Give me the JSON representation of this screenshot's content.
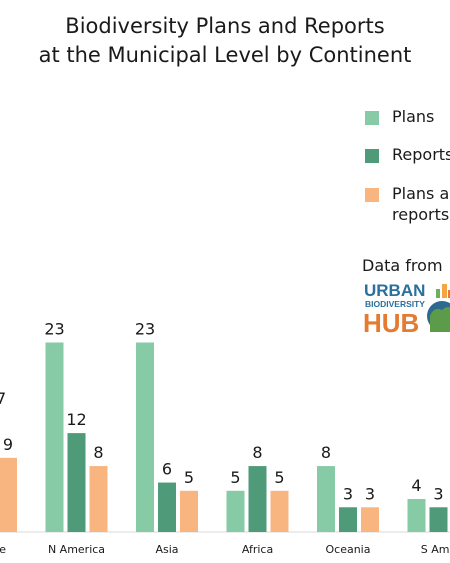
{
  "chart_data": {
    "type": "bar",
    "title_lines": [
      "Biodiversity Plans and Reports",
      "at the Municipal Level by Continent"
    ],
    "categories": [
      "pe",
      "N America",
      "Asia",
      "Africa",
      "Oceania",
      "S Ame"
    ],
    "series": [
      {
        "name": "Plans",
        "color": "#86cba5",
        "values": [
          null,
          23,
          23,
          5,
          8,
          4
        ]
      },
      {
        "name": "Reports",
        "color": "#4f9a78",
        "values": [
          null,
          12,
          6,
          8,
          3,
          3
        ]
      },
      {
        "name": "Plans and reports",
        "color": "#f8b57f",
        "values": [
          9,
          8,
          5,
          5,
          3,
          null
        ]
      }
    ],
    "partial_value_label": "7",
    "ylim": [
      0,
      25
    ],
    "grid": false,
    "legend_position": "right"
  },
  "legend": {
    "items": [
      {
        "label": "Plans",
        "color": "#86cba5"
      },
      {
        "label": "Reports",
        "color": "#4f9a78"
      },
      {
        "label": "Plans an\nreports",
        "color": "#f8b57f"
      }
    ]
  },
  "credit": {
    "label": "Data from",
    "logo_line1": "URBAN",
    "logo_line2": "BIODIVERSITY",
    "logo_line3": "HUB"
  }
}
